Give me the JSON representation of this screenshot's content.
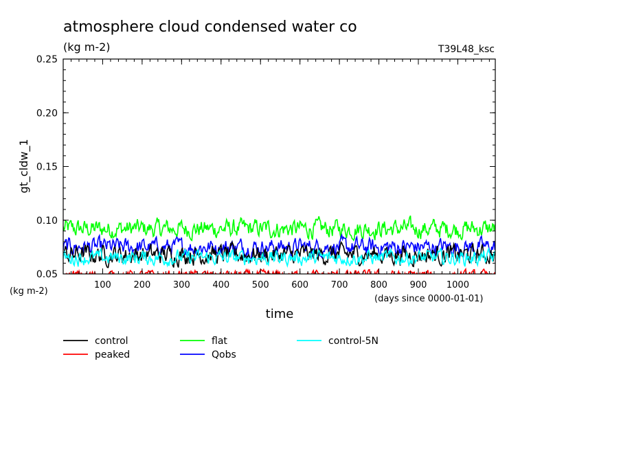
{
  "chart_data": {
    "type": "line",
    "title": "atmosphere cloud condensed water co",
    "subtitle": "(kg m-2)",
    "experiment_label": "T39L48_ksc",
    "ylabel": "gt_cldw_1",
    "y_unit_label": "(kg m-2)",
    "xlabel": "time",
    "x_unit_label": "(days since 0000-01-01)",
    "xlim": [
      0,
      1095
    ],
    "ylim": [
      0.05,
      0.25
    ],
    "x_ticks": [
      100,
      200,
      300,
      400,
      500,
      600,
      700,
      800,
      900,
      1000
    ],
    "y_ticks": [
      0.05,
      0.1,
      0.15,
      0.2,
      0.25
    ],
    "y_tick_labels": [
      "0.05",
      "0.10",
      "0.15",
      "0.20",
      "0.25"
    ],
    "grid": false,
    "legend_placement": "below",
    "series": [
      {
        "name": "control",
        "color": "#000000",
        "approx_mean": 0.068,
        "approx_range": [
          0.056,
          0.085
        ]
      },
      {
        "name": "flat",
        "color": "#00ff00",
        "approx_mean": 0.092,
        "approx_range": [
          0.08,
          0.108
        ]
      },
      {
        "name": "control-5N",
        "color": "#00ffff",
        "approx_mean": 0.065,
        "approx_range": [
          0.056,
          0.078
        ]
      },
      {
        "name": "peaked",
        "color": "#ff0000",
        "approx_mean": 0.049,
        "approx_range": [
          0.044,
          0.057
        ]
      },
      {
        "name": "Qobs",
        "color": "#0000ff",
        "approx_mean": 0.075,
        "approx_range": [
          0.062,
          0.088
        ]
      }
    ],
    "legend": [
      {
        "name": "control",
        "color": "#000000"
      },
      {
        "name": "flat",
        "color": "#00ff00"
      },
      {
        "name": "control-5N",
        "color": "#00ffff"
      },
      {
        "name": "peaked",
        "color": "#ff0000"
      },
      {
        "name": "Qobs",
        "color": "#0000ff"
      }
    ]
  }
}
